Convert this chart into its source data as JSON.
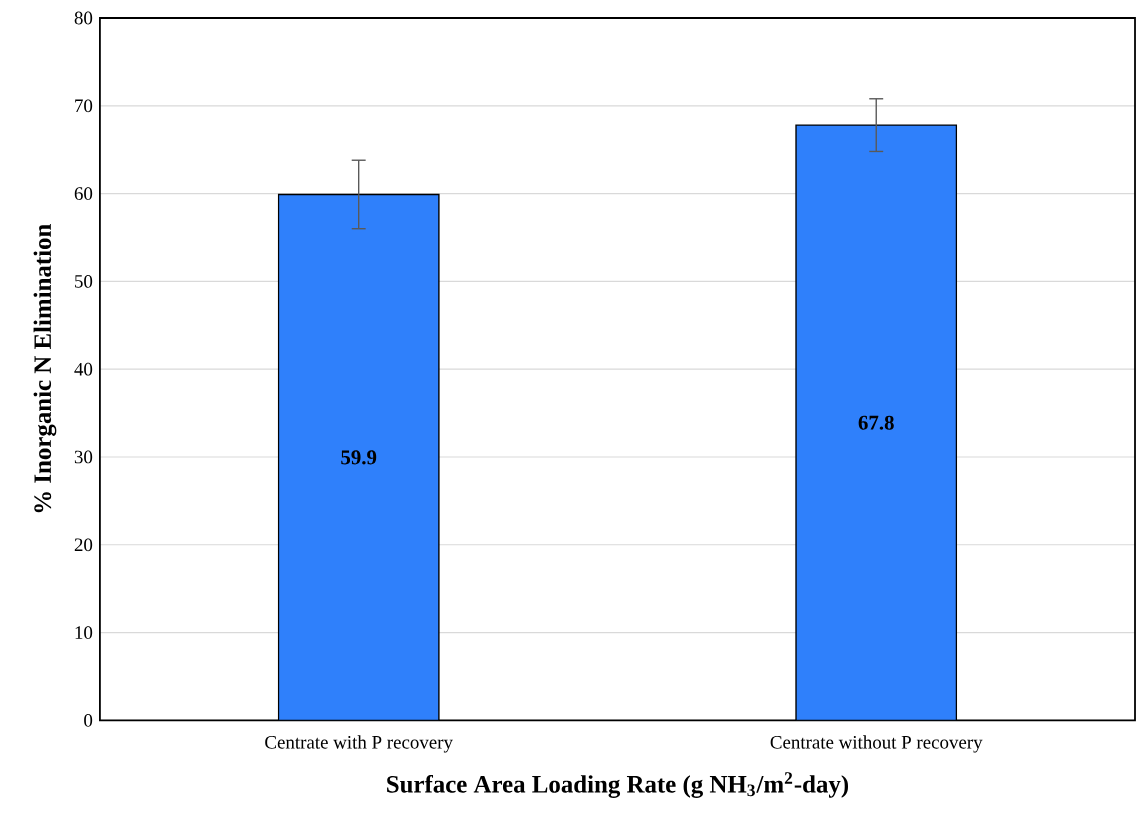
{
  "chart_data": {
    "type": "bar",
    "xlabel": "**Surface Area Loading Rate (g NH$_{3}$/m$^{2}$-day)**",
    "ylabel": "**% Inorganic N Elimination**",
    "categories": [
      "Centrate with P recovery",
      "Centrate without P recovery"
    ],
    "values": [
      59.9,
      67.8
    ],
    "errors": [
      3.9,
      3.0
    ],
    "value_labels": [
      "59.9",
      "67.8"
    ],
    "color": "#2f80fb",
    "ylim": [
      0,
      80
    ],
    "yticks": [
      0,
      10,
      20,
      30,
      40,
      50,
      60,
      70,
      80
    ],
    "grid": "y"
  }
}
